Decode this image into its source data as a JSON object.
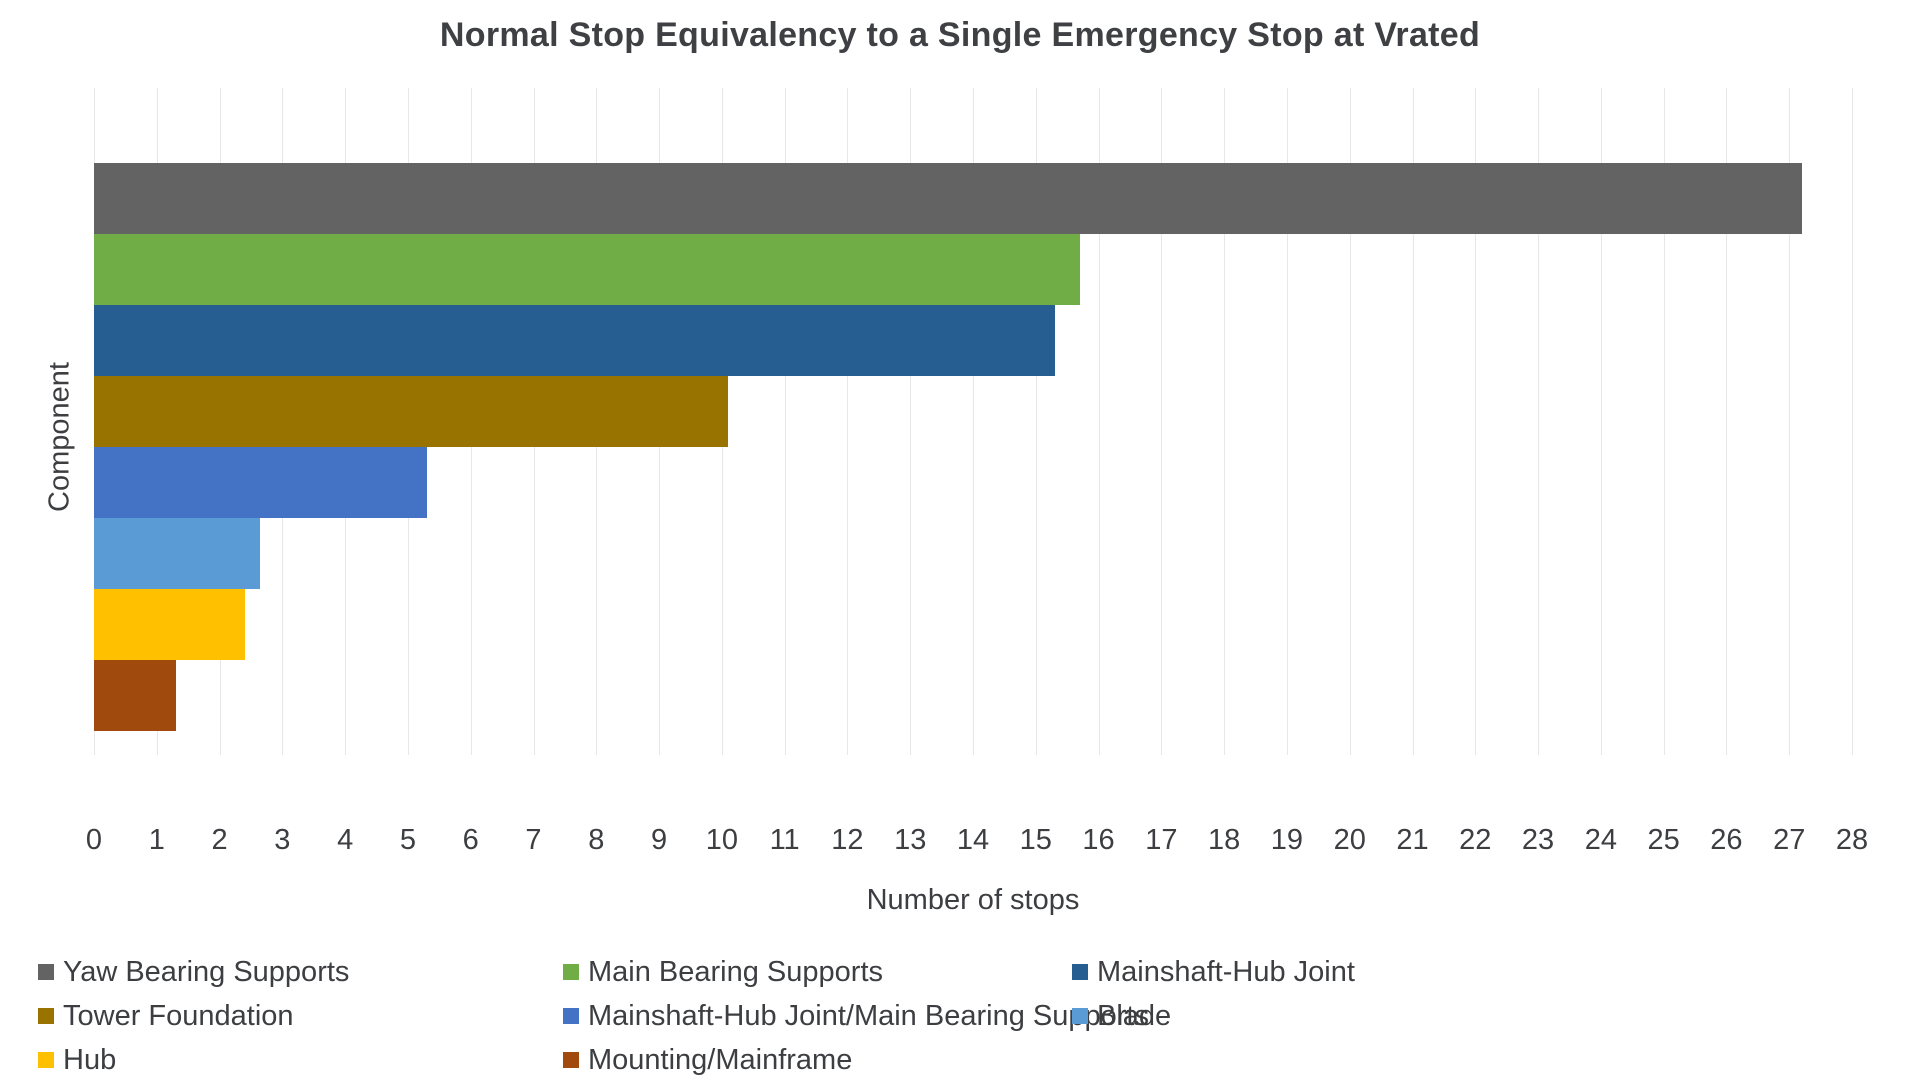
{
  "title": "Normal Stop Equivalency to a Single Emergency Stop at Vrated",
  "axes": {
    "xlabel": "Number of stops",
    "ylabel": "Component"
  },
  "colors": {
    "background": "#ffffff",
    "grid": "#e7e7e7",
    "text": "#3c3e41",
    "title_text": "#3e4043"
  },
  "chart_data": {
    "type": "bar",
    "orientation": "horizontal",
    "title": "Normal Stop Equivalency to a Single Emergency Stop at Vrated",
    "xlabel": "Number of stops",
    "ylabel": "Component",
    "xlim": [
      0,
      28
    ],
    "x_ticks": [
      0,
      1,
      2,
      3,
      4,
      5,
      6,
      7,
      8,
      9,
      10,
      11,
      12,
      13,
      14,
      15,
      16,
      17,
      18,
      19,
      20,
      21,
      22,
      23,
      24,
      25,
      26,
      27,
      28
    ],
    "grid": true,
    "legend_position": "bottom",
    "legend_columns": 3,
    "series": [
      {
        "name": "Yaw Bearing Supports",
        "value": 27.2,
        "color": "#636363"
      },
      {
        "name": "Main Bearing Supports",
        "value": 15.7,
        "color": "#70AD47"
      },
      {
        "name": "Mainshaft-Hub Joint",
        "value": 15.3,
        "color": "#265E91"
      },
      {
        "name": "Tower Foundation",
        "value": 10.1,
        "color": "#997300"
      },
      {
        "name": "Mainshaft-Hub Joint/Main Bearing Supports",
        "value": 5.3,
        "color": "#4472C4"
      },
      {
        "name": "Blade",
        "value": 2.65,
        "color": "#5B9BD5"
      },
      {
        "name": "Hub",
        "value": 2.4,
        "color": "#FFC000"
      },
      {
        "name": "Mounting/Mainframe",
        "value": 1.3,
        "color": "#A04A0E"
      }
    ]
  }
}
